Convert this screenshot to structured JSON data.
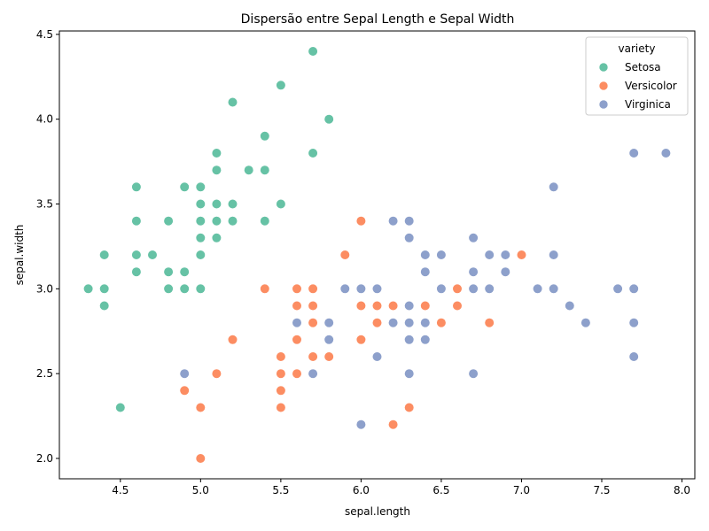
{
  "chart_data": {
    "type": "scatter",
    "title": "Dispersão entre Sepal Length e Sepal Width",
    "xlabel": "sepal.length",
    "ylabel": "sepal.width",
    "xlim": [
      4.12,
      8.08
    ],
    "ylim": [
      1.88,
      4.52
    ],
    "xticks": [
      "4.5",
      "5.0",
      "5.5",
      "6.0",
      "6.5",
      "7.0",
      "7.5",
      "8.0"
    ],
    "yticks": [
      "2.0",
      "2.5",
      "3.0",
      "3.5",
      "4.0",
      "4.5"
    ],
    "grid": false,
    "legend": {
      "title": "variety",
      "placement": "upper-right"
    },
    "series": [
      {
        "name": "Setosa",
        "color": "#66c2a5",
        "points": [
          [
            5.1,
            3.5
          ],
          [
            4.9,
            3.0
          ],
          [
            4.7,
            3.2
          ],
          [
            4.6,
            3.1
          ],
          [
            5.0,
            3.6
          ],
          [
            5.4,
            3.9
          ],
          [
            4.6,
            3.4
          ],
          [
            5.0,
            3.4
          ],
          [
            4.4,
            2.9
          ],
          [
            4.9,
            3.1
          ],
          [
            5.4,
            3.7
          ],
          [
            4.8,
            3.4
          ],
          [
            4.8,
            3.0
          ],
          [
            4.3,
            3.0
          ],
          [
            5.8,
            4.0
          ],
          [
            5.7,
            4.4
          ],
          [
            5.4,
            3.9
          ],
          [
            5.1,
            3.5
          ],
          [
            5.7,
            3.8
          ],
          [
            5.1,
            3.8
          ],
          [
            5.4,
            3.4
          ],
          [
            5.1,
            3.7
          ],
          [
            4.6,
            3.6
          ],
          [
            5.1,
            3.3
          ],
          [
            4.8,
            3.4
          ],
          [
            5.0,
            3.0
          ],
          [
            5.0,
            3.4
          ],
          [
            5.2,
            3.5
          ],
          [
            5.2,
            3.4
          ],
          [
            4.7,
            3.2
          ],
          [
            4.8,
            3.1
          ],
          [
            5.4,
            3.4
          ],
          [
            5.2,
            4.1
          ],
          [
            5.5,
            4.2
          ],
          [
            4.9,
            3.1
          ],
          [
            5.0,
            3.2
          ],
          [
            5.5,
            3.5
          ],
          [
            4.9,
            3.6
          ],
          [
            4.4,
            3.0
          ],
          [
            5.1,
            3.4
          ],
          [
            5.0,
            3.5
          ],
          [
            4.5,
            2.3
          ],
          [
            4.4,
            3.2
          ],
          [
            5.0,
            3.5
          ],
          [
            5.1,
            3.8
          ],
          [
            4.8,
            3.0
          ],
          [
            5.1,
            3.8
          ],
          [
            4.6,
            3.2
          ],
          [
            5.3,
            3.7
          ],
          [
            5.0,
            3.3
          ]
        ]
      },
      {
        "name": "Versicolor",
        "color": "#fc8d62",
        "points": [
          [
            7.0,
            3.2
          ],
          [
            6.4,
            3.2
          ],
          [
            6.9,
            3.1
          ],
          [
            5.5,
            2.3
          ],
          [
            6.5,
            2.8
          ],
          [
            5.7,
            2.8
          ],
          [
            6.3,
            3.3
          ],
          [
            4.9,
            2.4
          ],
          [
            6.6,
            2.9
          ],
          [
            5.2,
            2.7
          ],
          [
            5.0,
            2.0
          ],
          [
            5.9,
            3.0
          ],
          [
            6.0,
            2.2
          ],
          [
            6.1,
            2.9
          ],
          [
            5.6,
            2.9
          ],
          [
            6.7,
            3.1
          ],
          [
            5.6,
            3.0
          ],
          [
            5.8,
            2.7
          ],
          [
            6.2,
            2.2
          ],
          [
            5.6,
            2.5
          ],
          [
            5.9,
            3.2
          ],
          [
            6.1,
            2.8
          ],
          [
            6.3,
            2.5
          ],
          [
            6.1,
            2.8
          ],
          [
            6.4,
            2.9
          ],
          [
            6.6,
            3.0
          ],
          [
            6.8,
            2.8
          ],
          [
            6.7,
            3.0
          ],
          [
            6.0,
            2.9
          ],
          [
            5.7,
            2.6
          ],
          [
            5.5,
            2.4
          ],
          [
            5.5,
            2.4
          ],
          [
            5.8,
            2.7
          ],
          [
            6.0,
            2.7
          ],
          [
            5.4,
            3.0
          ],
          [
            6.0,
            3.4
          ],
          [
            6.7,
            3.1
          ],
          [
            6.3,
            2.3
          ],
          [
            5.6,
            3.0
          ],
          [
            5.5,
            2.5
          ],
          [
            5.5,
            2.6
          ],
          [
            6.1,
            3.0
          ],
          [
            5.8,
            2.6
          ],
          [
            5.0,
            2.3
          ],
          [
            5.6,
            2.7
          ],
          [
            5.7,
            3.0
          ],
          [
            5.7,
            2.9
          ],
          [
            6.2,
            2.9
          ],
          [
            5.1,
            2.5
          ],
          [
            5.7,
            2.8
          ]
        ]
      },
      {
        "name": "Virginica",
        "color": "#8da0cb",
        "points": [
          [
            6.3,
            3.3
          ],
          [
            5.8,
            2.7
          ],
          [
            7.1,
            3.0
          ],
          [
            6.3,
            2.9
          ],
          [
            6.5,
            3.0
          ],
          [
            7.6,
            3.0
          ],
          [
            4.9,
            2.5
          ],
          [
            7.3,
            2.9
          ],
          [
            6.7,
            2.5
          ],
          [
            7.2,
            3.6
          ],
          [
            6.5,
            3.2
          ],
          [
            6.4,
            2.7
          ],
          [
            6.8,
            3.0
          ],
          [
            5.7,
            2.5
          ],
          [
            5.8,
            2.8
          ],
          [
            6.4,
            3.2
          ],
          [
            6.5,
            3.0
          ],
          [
            7.7,
            3.8
          ],
          [
            7.7,
            2.6
          ],
          [
            6.0,
            2.2
          ],
          [
            6.9,
            3.2
          ],
          [
            5.6,
            2.8
          ],
          [
            7.7,
            2.8
          ],
          [
            6.3,
            2.7
          ],
          [
            6.7,
            3.3
          ],
          [
            7.2,
            3.2
          ],
          [
            6.2,
            2.8
          ],
          [
            6.1,
            3.0
          ],
          [
            6.4,
            2.8
          ],
          [
            7.2,
            3.0
          ],
          [
            7.4,
            2.8
          ],
          [
            7.9,
            3.8
          ],
          [
            6.4,
            2.8
          ],
          [
            6.3,
            2.8
          ],
          [
            6.1,
            2.6
          ],
          [
            7.7,
            3.0
          ],
          [
            6.3,
            3.4
          ],
          [
            6.4,
            3.1
          ],
          [
            6.0,
            3.0
          ],
          [
            6.9,
            3.1
          ],
          [
            6.7,
            3.1
          ],
          [
            6.9,
            3.1
          ],
          [
            5.8,
            2.7
          ],
          [
            6.8,
            3.2
          ],
          [
            6.7,
            3.3
          ],
          [
            6.7,
            3.0
          ],
          [
            6.3,
            2.5
          ],
          [
            6.5,
            3.0
          ],
          [
            6.2,
            3.4
          ],
          [
            5.9,
            3.0
          ]
        ]
      }
    ]
  }
}
